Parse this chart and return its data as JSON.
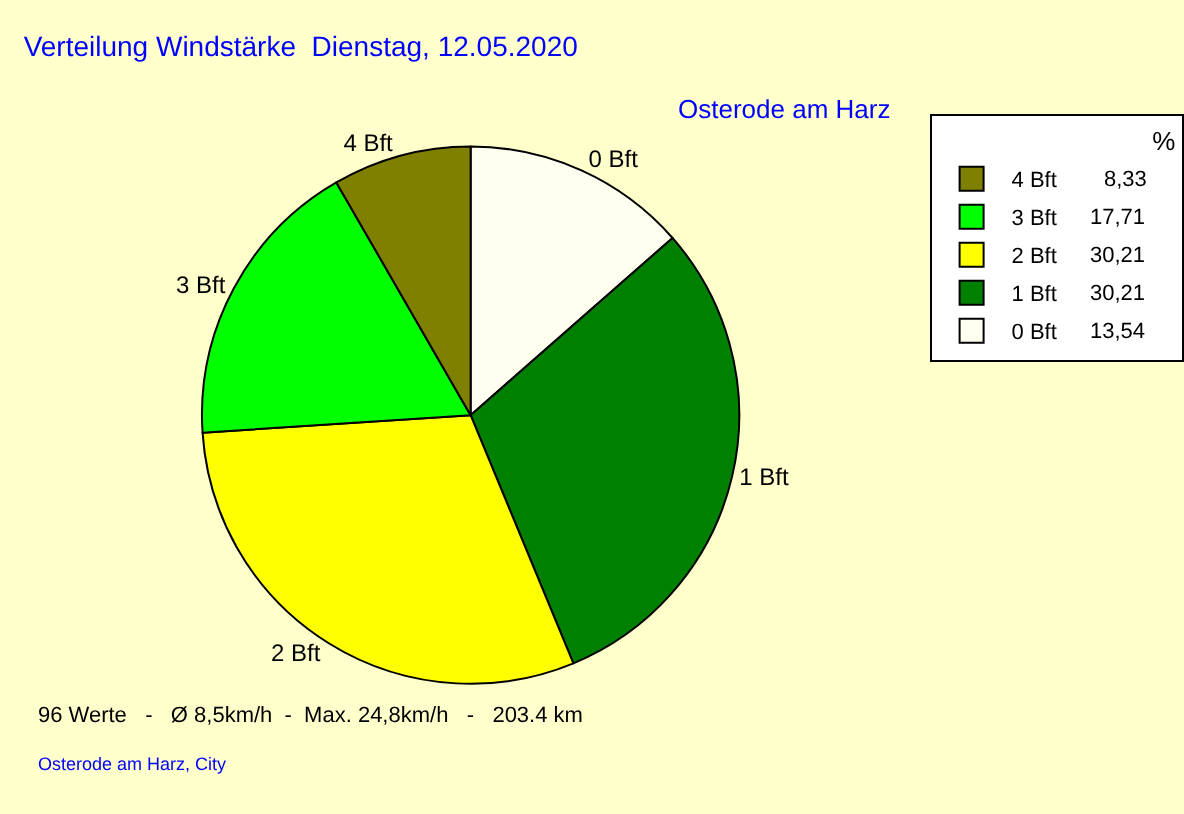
{
  "chart_data": {
    "type": "pie",
    "title": "Verteilung Windstärke  Dienstag, 12.05.2020",
    "subtitle": "Osterode am Harz",
    "legend_title": "%",
    "legend": "top right",
    "categories": [
      "0 Bft",
      "1 Bft",
      "2 Bft",
      "3 Bft",
      "4 Bft"
    ],
    "values": [
      13.54,
      30.21,
      30.21,
      17.71,
      8.33
    ],
    "value_labels": [
      "13,54",
      "30,21",
      "30,21",
      "17,71",
      "8,33"
    ],
    "colors": [
      "#fffff0",
      "#008000",
      "#ffff00",
      "#00ff00",
      "#808000"
    ],
    "annotations": [
      "96 Werte   -   Ø 8,5km/h  -  Max. 24,8km/h   -   203.4 km",
      "Osterode am Harz, City"
    ]
  }
}
